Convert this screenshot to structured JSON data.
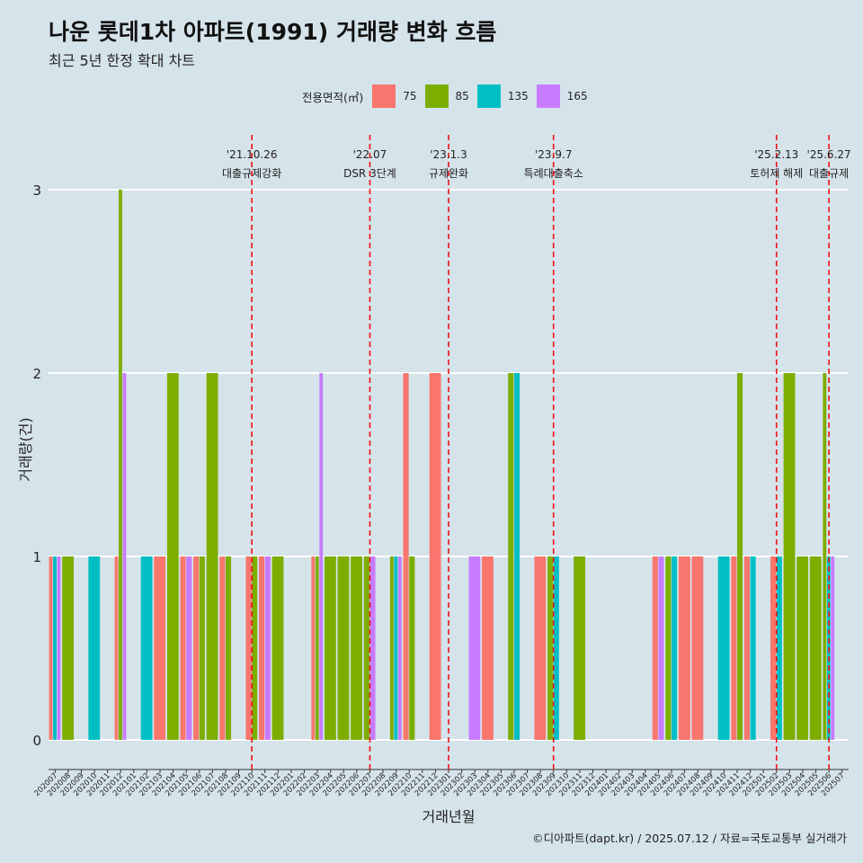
{
  "header": {
    "title": "나운 롯데1차 아파트(1991) 거래량 변화 흐름",
    "subtitle": "최근 5년 한정 확대 차트"
  },
  "legend": {
    "title": "전용면적(㎡)",
    "items": [
      {
        "label": "75",
        "color": "#f8766d"
      },
      {
        "label": "85",
        "color": "#7cae00"
      },
      {
        "label": "135",
        "color": "#00bfc4"
      },
      {
        "label": "165",
        "color": "#c77cff"
      }
    ]
  },
  "caption": "©디아파트(dapt.kr) / 2025.07.12 / 자료=국토교통부 실거래가",
  "chart_data": {
    "type": "bar",
    "xlabel": "거래년월",
    "ylabel": "거래량(건)",
    "ylim": [
      0,
      3
    ],
    "yticks": [
      0,
      1,
      2,
      3
    ],
    "grid": true,
    "legend_position": "top",
    "categories": [
      "202007",
      "202008",
      "202009",
      "202010",
      "202011",
      "202012",
      "202101",
      "202102",
      "202103",
      "202104",
      "202105",
      "202106",
      "202107",
      "202108",
      "202109",
      "202110",
      "202111",
      "202112",
      "202201",
      "202202",
      "202203",
      "202204",
      "202205",
      "202206",
      "202207",
      "202208",
      "202209",
      "202210",
      "202211",
      "202212",
      "202301",
      "202302",
      "202303",
      "202304",
      "202305",
      "202306",
      "202307",
      "202308",
      "202309",
      "202310",
      "202311",
      "202312",
      "202401",
      "202402",
      "202403",
      "202404",
      "202405",
      "202406",
      "202407",
      "202408",
      "202409",
      "202410",
      "202411",
      "202412",
      "202501",
      "202502",
      "202503",
      "202504",
      "202505",
      "202506",
      "202507"
    ],
    "series": [
      {
        "name": "75",
        "color": "#f8766d",
        "values": [
          1,
          0,
          0,
          0,
          0,
          1,
          0,
          0,
          1,
          0,
          1,
          1,
          0,
          1,
          0,
          1,
          1,
          0,
          0,
          0,
          1,
          0,
          0,
          0,
          0,
          0,
          0,
          2,
          0,
          2,
          0,
          0,
          0,
          1,
          0,
          0,
          0,
          1,
          0,
          0,
          0,
          0,
          0,
          0,
          0,
          0,
          1,
          0,
          1,
          1,
          0,
          0,
          1,
          1,
          0,
          1,
          0,
          0,
          0,
          0,
          0
        ]
      },
      {
        "name": "85",
        "color": "#7cae00",
        "values": [
          0,
          1,
          0,
          0,
          0,
          3,
          0,
          0,
          0,
          2,
          0,
          1,
          2,
          1,
          0,
          1,
          0,
          1,
          0,
          0,
          1,
          1,
          1,
          1,
          1,
          0,
          1,
          1,
          0,
          0,
          0,
          0,
          0,
          0,
          0,
          2,
          0,
          0,
          1,
          0,
          1,
          0,
          0,
          0,
          0,
          0,
          0,
          1,
          0,
          0,
          0,
          0,
          2,
          0,
          0,
          0,
          2,
          1,
          1,
          2,
          0
        ]
      },
      {
        "name": "135",
        "color": "#00bfc4",
        "values": [
          1,
          0,
          0,
          1,
          0,
          0,
          0,
          1,
          0,
          0,
          0,
          0,
          0,
          0,
          0,
          0,
          0,
          0,
          0,
          0,
          0,
          0,
          0,
          0,
          0,
          0,
          1,
          0,
          0,
          0,
          0,
          0,
          0,
          0,
          0,
          2,
          0,
          0,
          1,
          0,
          0,
          0,
          0,
          0,
          0,
          0,
          0,
          1,
          0,
          0,
          0,
          1,
          0,
          1,
          0,
          1,
          0,
          0,
          0,
          1,
          0
        ]
      },
      {
        "name": "165",
        "color": "#c77cff",
        "values": [
          1,
          0,
          0,
          0,
          0,
          2,
          0,
          0,
          0,
          0,
          1,
          0,
          0,
          0,
          0,
          0,
          1,
          0,
          0,
          0,
          2,
          0,
          0,
          0,
          1,
          0,
          1,
          0,
          0,
          0,
          0,
          0,
          1,
          0,
          0,
          0,
          0,
          0,
          0,
          0,
          0,
          0,
          0,
          0,
          0,
          0,
          1,
          0,
          0,
          0,
          0,
          0,
          0,
          0,
          0,
          0,
          0,
          0,
          0,
          1,
          0
        ]
      }
    ],
    "annotations": [
      {
        "at": "202110",
        "date": "'21.10.26",
        "label": "대출규제강화"
      },
      {
        "at": "202207",
        "date": "'22.07",
        "label": "DSR 3단계"
      },
      {
        "at": "202301",
        "date": "'23.1.3",
        "label": "규제완화"
      },
      {
        "at": "202309",
        "date": "'23.9.7",
        "label": "특례대출축소"
      },
      {
        "at": "202502",
        "date": "'25.2.13",
        "label": "토허제 해제"
      },
      {
        "at": "202506",
        "date": "'25.6.27",
        "label": "대출규제"
      }
    ]
  }
}
